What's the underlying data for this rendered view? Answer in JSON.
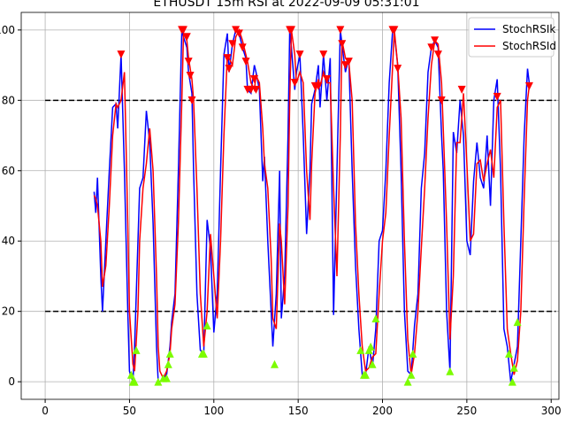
{
  "chart_data": {
    "type": "line",
    "title": "ETHUSDT 15m RSI at 2022-09-09 05:31:01",
    "x": [
      29,
      30,
      31,
      33,
      34,
      36,
      38,
      40,
      42,
      43,
      45,
      47,
      49,
      50,
      52,
      53,
      55,
      56,
      58,
      60,
      62,
      64,
      66,
      67,
      68,
      70,
      72,
      74,
      75,
      77,
      79,
      81,
      82,
      84,
      85,
      87,
      88,
      90,
      92,
      94,
      96,
      98,
      100,
      102,
      104,
      106,
      108,
      109,
      111,
      113,
      115,
      117,
      119,
      120,
      122,
      124,
      125,
      127,
      129,
      130,
      132,
      134,
      135,
      137,
      139,
      140,
      142,
      144,
      145,
      146,
      148,
      149,
      151,
      153,
      155,
      157,
      158,
      160,
      162,
      163,
      165,
      167,
      169,
      171,
      173,
      175,
      176,
      178,
      180,
      182,
      184,
      186,
      188,
      190,
      192,
      194,
      196,
      198,
      200,
      202,
      204,
      206,
      207,
      209,
      211,
      213,
      215,
      217,
      219,
      221,
      223,
      225,
      227,
      229,
      231,
      233,
      235,
      236,
      238,
      240,
      242,
      244,
      246,
      248,
      250,
      252,
      254,
      256,
      258,
      260,
      262,
      264,
      266,
      268,
      270,
      272,
      274,
      276,
      278,
      280,
      282,
      284,
      286,
      287
    ],
    "series": [
      {
        "name": "StochRSIk",
        "color": "#0000ff",
        "values": [
          54,
          48,
          58,
          30,
          20,
          40,
          60,
          78,
          79,
          72,
          93,
          60,
          20,
          3,
          0,
          10,
          40,
          55,
          58,
          77,
          68,
          45,
          10,
          0,
          0,
          1,
          2,
          10,
          17,
          25,
          60,
          100,
          98,
          95,
          88,
          82,
          60,
          25,
          9,
          8,
          46,
          38,
          14,
          25,
          60,
          93,
          99,
          88,
          96,
          100,
          99,
          95,
          92,
          83,
          82,
          90,
          88,
          83,
          57,
          64,
          40,
          20,
          10,
          25,
          60,
          18,
          30,
          70,
          100,
          95,
          83,
          88,
          93,
          70,
          42,
          60,
          79,
          83,
          90,
          78,
          93,
          80,
          92,
          19,
          60,
          100,
          96,
          88,
          92,
          60,
          33,
          15,
          2,
          2,
          10,
          4,
          15,
          40,
          43,
          60,
          85,
          100,
          99,
          90,
          60,
          20,
          3,
          2,
          16,
          25,
          55,
          65,
          88,
          95,
          97,
          95,
          70,
          60,
          20,
          3,
          71,
          65,
          80,
          70,
          40,
          36,
          57,
          68,
          58,
          55,
          70,
          50,
          80,
          86,
          60,
          15,
          10,
          0,
          5,
          10,
          40,
          70,
          89,
          85
        ]
      },
      {
        "name": "StochRSId",
        "color": "#ff0000",
        "values": [
          53,
          52,
          50,
          40,
          27,
          33,
          50,
          70,
          79,
          78,
          80,
          88,
          45,
          20,
          5,
          3,
          20,
          40,
          55,
          62,
          72,
          60,
          30,
          10,
          3,
          1,
          3,
          8,
          15,
          22,
          45,
          80,
          99,
          97,
          92,
          86,
          80,
          55,
          25,
          10,
          20,
          42,
          30,
          18,
          40,
          70,
          93,
          92,
          90,
          98,
          100,
          97,
          93,
          91,
          85,
          83,
          87,
          85,
          72,
          62,
          55,
          35,
          18,
          15,
          45,
          40,
          22,
          50,
          80,
          100,
          93,
          85,
          88,
          85,
          60,
          46,
          62,
          82,
          86,
          84,
          88,
          85,
          85,
          55,
          30,
          70,
          97,
          92,
          91,
          80,
          45,
          25,
          10,
          3,
          4,
          7,
          8,
          25,
          40,
          48,
          70,
          90,
          100,
          90,
          75,
          40,
          12,
          2,
          8,
          20,
          38,
          55,
          75,
          90,
          97,
          96,
          85,
          72,
          45,
          12,
          30,
          68,
          68,
          82,
          62,
          40,
          42,
          62,
          63,
          57,
          62,
          66,
          58,
          78,
          80,
          45,
          15,
          8,
          2,
          6,
          20,
          52,
          80,
          84
        ]
      }
    ],
    "sell_markers": {
      "color": "#ff0000",
      "x": [
        45,
        81,
        82,
        84,
        85,
        86,
        87,
        108,
        109,
        111,
        113,
        115,
        117,
        119,
        120,
        122,
        124,
        125,
        145,
        146,
        148,
        151,
        160,
        162,
        165,
        167,
        175,
        176,
        178,
        180,
        206,
        207,
        209,
        229,
        231,
        233,
        235,
        247,
        268,
        287
      ],
      "values": [
        93,
        100,
        100,
        98,
        91,
        87,
        80,
        92,
        89,
        96,
        100,
        99,
        95,
        91,
        83,
        83,
        86,
        83,
        100,
        100,
        85,
        93,
        84,
        84,
        93,
        86,
        100,
        96,
        90,
        91,
        100,
        100,
        89,
        95,
        97,
        93,
        80,
        83,
        81,
        84
      ]
    },
    "buy_markers": {
      "color": "#7cfc00",
      "x": [
        51,
        52,
        53,
        54,
        67,
        70,
        72,
        73,
        74,
        93,
        94,
        96,
        136,
        187,
        189,
        190,
        192,
        193,
        194,
        196,
        215,
        217,
        218,
        240,
        275,
        277,
        278,
        280
      ],
      "values": [
        2,
        0,
        0,
        9,
        0,
        1,
        1,
        5,
        8,
        8,
        8,
        16,
        5,
        9,
        2,
        2,
        9,
        10,
        5,
        18,
        0,
        2,
        8,
        3,
        8,
        0,
        4,
        17
      ]
    },
    "hlines": [
      20,
      80
    ],
    "xlim": [
      -14.2,
      304.6
    ],
    "ylim": [
      -5,
      105
    ],
    "xticks": [
      0,
      50,
      100,
      150,
      200,
      250,
      300
    ],
    "yticks": [
      0,
      20,
      40,
      60,
      80,
      100
    ],
    "grid": true,
    "legend": "upper right"
  }
}
